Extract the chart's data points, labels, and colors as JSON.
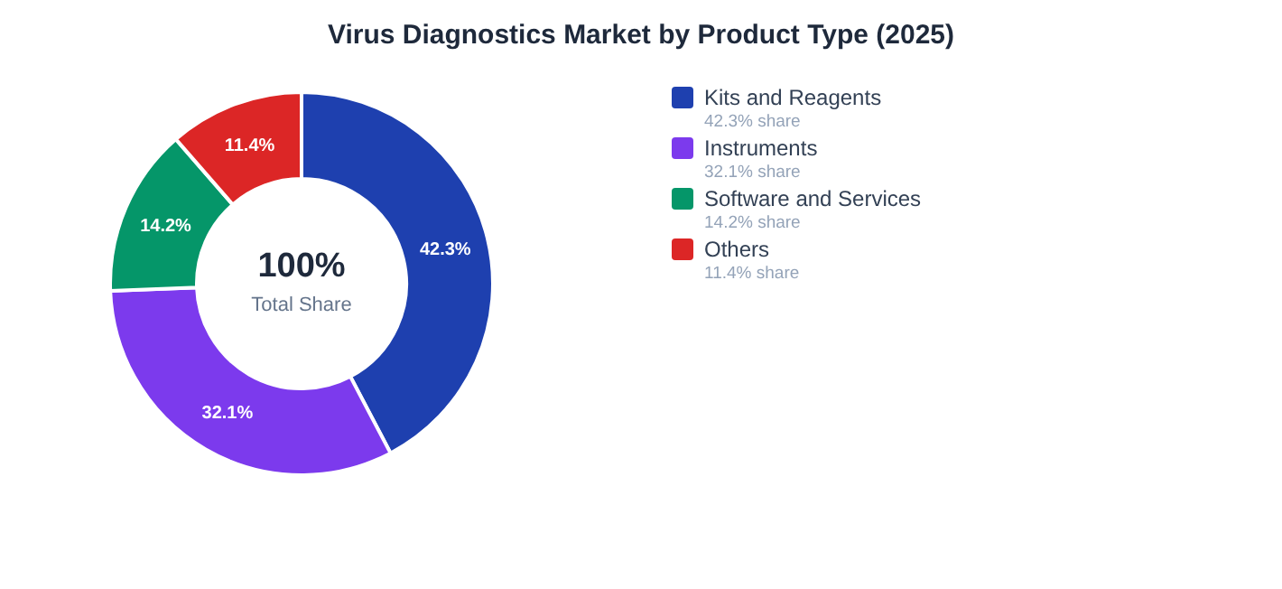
{
  "chart_data": {
    "type": "donut",
    "title": "Virus Diagnostics Market by Product Type (2025)",
    "categories": [
      "Kits and Reagents",
      "Instruments",
      "Software and Services",
      "Others"
    ],
    "values": [
      42.3,
      32.1,
      14.2,
      11.4
    ],
    "colors": [
      "#1e40af",
      "#7c3aed",
      "#059669",
      "#dc2626"
    ],
    "value_labels": [
      "42.3%",
      "32.1%",
      "14.2%",
      "11.4%"
    ],
    "annotations": [
      "100%",
      "Total Share",
      "42.3% share",
      "32.1% share",
      "14.2% share",
      "11.4% share"
    ],
    "legend": "right"
  }
}
